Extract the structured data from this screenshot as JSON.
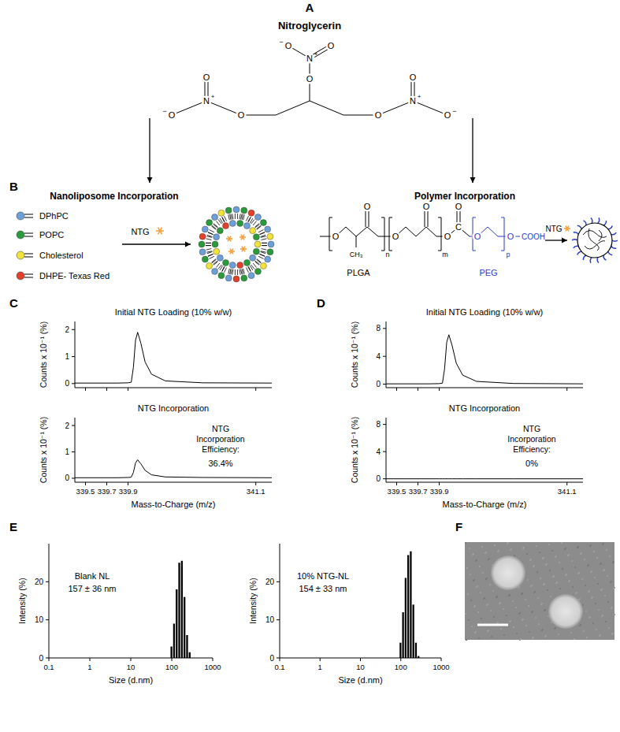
{
  "panels": [
    "A",
    "B",
    "C",
    "D",
    "E",
    "F"
  ],
  "structure": {
    "title": "Nitroglycerin"
  },
  "atoms": {
    "oxygen": "O",
    "nitrogen": "N",
    "carbon": "C",
    "methyl": "CH₃",
    "acid": "COOH",
    "plus": "+",
    "minus": "−"
  },
  "liposome": {
    "title": "Nanoliposome Incorporation",
    "cargo": {
      "name": "NTG",
      "color": "#f5a03c"
    },
    "legend": [
      {
        "name": "DPhPC",
        "color": "#6d9fd8"
      },
      {
        "name": "POPC",
        "color": "#2a9a3c"
      },
      {
        "name": "Cholesterol",
        "color": "#f2e33a"
      },
      {
        "name": "DHPE- Texas Red",
        "color": "#e2402a"
      }
    ]
  },
  "polymer": {
    "title": "Polymer Incorporation",
    "cargo": {
      "name": "NTG",
      "color": "#f5a03c"
    },
    "plga": {
      "name": "PLGA"
    },
    "peg": {
      "name": "PEG",
      "color": "#2a3cc8"
    },
    "repeats": [
      "n",
      "m",
      "p"
    ]
  },
  "chart_data": [
    {
      "type": "line",
      "title": "Initial NTG Loading (10% w/w)",
      "ylabel": "Counts x 10⁻¹ (%)",
      "x": [
        339.4,
        339.6,
        339.8,
        339.9,
        339.93,
        339.95,
        339.97,
        339.99,
        340.02,
        340.06,
        340.12,
        340.25,
        340.6,
        341.25
      ],
      "values": [
        0.02,
        0.02,
        0.02,
        0.03,
        0.05,
        0.6,
        1.6,
        1.9,
        1.5,
        0.8,
        0.35,
        0.1,
        0.03,
        0.02
      ],
      "color": "#000000",
      "xlim": [
        339.4,
        341.25
      ],
      "ylim": [
        -0.15,
        2.3
      ],
      "xticks": [
        339.5,
        339.7,
        339.9,
        341.1
      ],
      "yticks": [
        0,
        1,
        2
      ],
      "tick_labels": "y"
    },
    {
      "type": "line",
      "title": "NTG Incorporation",
      "xlabel": "Mass-to-Charge (m/z)",
      "ylabel": "Counts x 10⁻¹ (%)",
      "x": [
        339.4,
        339.6,
        339.8,
        339.9,
        339.93,
        339.95,
        339.97,
        339.99,
        340.02,
        340.06,
        340.12,
        340.25,
        340.6,
        341.25
      ],
      "values": [
        0.02,
        0.02,
        0.02,
        0.03,
        0.04,
        0.22,
        0.58,
        0.7,
        0.55,
        0.3,
        0.13,
        0.05,
        0.03,
        0.02
      ],
      "color": "#000000",
      "xlim": [
        339.4,
        341.25
      ],
      "ylim": [
        -0.15,
        2.3
      ],
      "xticks": [
        339.5,
        339.7,
        339.9,
        341.1
      ],
      "yticks": [
        0,
        1,
        2
      ],
      "annotations": [
        "NTG",
        "Incorporation",
        "Efficiency:"
      ],
      "efficiency": "36.4%"
    },
    {
      "type": "line",
      "title": "Initial NTG Loading (10% w/w)",
      "ylabel": "Counts x 10⁻¹ (%)",
      "x": [
        339.4,
        339.6,
        339.8,
        339.9,
        339.93,
        339.95,
        339.97,
        339.99,
        340.02,
        340.06,
        340.12,
        340.25,
        340.6,
        341.25
      ],
      "values": [
        0.05,
        0.05,
        0.05,
        0.08,
        0.15,
        2.2,
        6.0,
        7.1,
        5.6,
        3.0,
        1.3,
        0.4,
        0.1,
        0.05
      ],
      "color": "#000000",
      "xlim": [
        339.4,
        341.25
      ],
      "ylim": [
        -0.5,
        9
      ],
      "xticks": [
        339.5,
        339.7,
        339.9,
        341.1
      ],
      "yticks": [
        0,
        4,
        8
      ],
      "tick_labels": "y"
    },
    {
      "type": "line",
      "title": "NTG Incorporation",
      "xlabel": "Mass-to-Charge (m/z)",
      "ylabel": "Counts x 10⁻¹ (%)",
      "x": [
        339.4,
        339.6,
        339.8,
        339.9,
        339.93,
        339.95,
        339.97,
        339.99,
        340.02,
        340.06,
        340.12,
        340.25,
        340.6,
        341.25
      ],
      "values": [
        0,
        0,
        0,
        0,
        0,
        0,
        0,
        0,
        0,
        0,
        0,
        0,
        0,
        0
      ],
      "color": "#000000",
      "xlim": [
        339.4,
        341.25
      ],
      "ylim": [
        -0.5,
        9
      ],
      "xticks": [
        339.5,
        339.7,
        339.9,
        341.1
      ],
      "yticks": [
        0,
        4,
        8
      ],
      "annotations": [
        "NTG",
        "Incorporation",
        "Efficiency:"
      ],
      "efficiency": "0%"
    },
    {
      "type": "histogram",
      "annotations": [
        "Blank NL",
        "157 ± 36 nm"
      ],
      "xlabel": "Size (d.nm)",
      "ylabel": "Intensity (%)",
      "bins": [
        91.3,
        105.7,
        122.4,
        141.8,
        164.2,
        190.1,
        220.2,
        255.0,
        295.3
      ],
      "values": [
        3,
        9,
        18,
        25,
        25.5,
        16,
        6,
        1.5
      ],
      "color": "#000000",
      "log": "x",
      "xlim": [
        0.1,
        1000
      ],
      "ylim": [
        0,
        30
      ],
      "xticks": [
        0.1,
        1,
        10,
        100,
        1000
      ],
      "yticks": [
        0,
        10,
        20
      ]
    },
    {
      "type": "histogram",
      "annotations": [
        "10% NTG-NL",
        "154 ± 33 nm"
      ],
      "xlabel": "Size (d.nm)",
      "ylabel": "Intensity (%)",
      "bins": [
        91.3,
        105.7,
        122.4,
        141.8,
        164.2,
        190.1,
        220.2,
        255.0,
        295.3
      ],
      "values": [
        4,
        12,
        21,
        27,
        28,
        14,
        4,
        0.5
      ],
      "color": "#000000",
      "log": "x",
      "xlim": [
        0.1,
        1000
      ],
      "ylim": [
        0,
        30
      ],
      "xticks": [
        0.1,
        1,
        10,
        100,
        1000
      ],
      "yticks": [
        0,
        10,
        20
      ]
    }
  ]
}
